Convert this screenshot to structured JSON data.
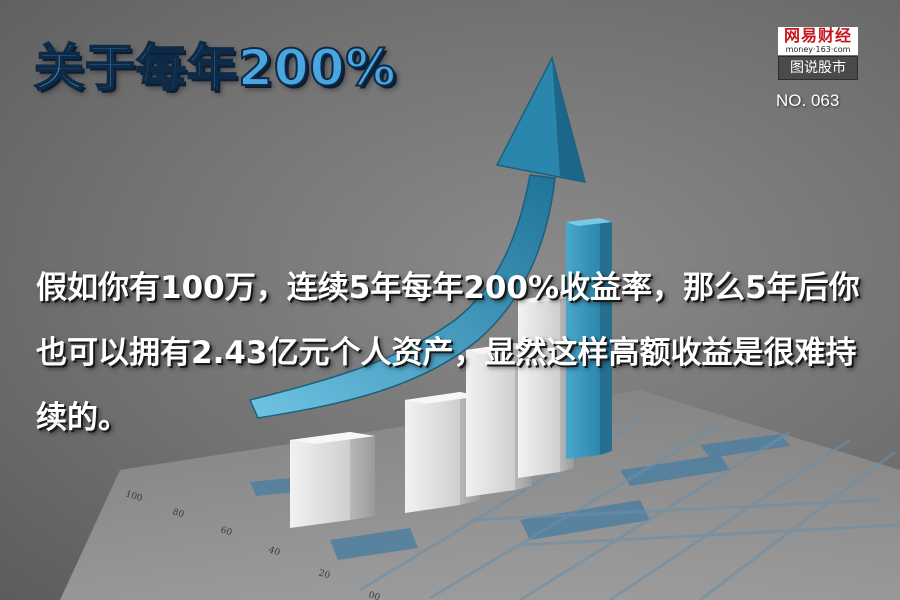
{
  "header": {
    "title": "关于每年200%"
  },
  "branding": {
    "logo_text": "网易财经",
    "site": "money·163·com",
    "section": "图说股市"
  },
  "issue": {
    "number": "NO. 063"
  },
  "content": {
    "paragraph": "假如你有100万，连续5年每年200%收益率，那么5年后你也可以拥有2.43亿元个人资产，显然这样高额收益是很难持续的。"
  },
  "decoration": {
    "axis_ticks": [
      "100",
      "80",
      "60",
      "40",
      "20",
      "00"
    ],
    "colors": {
      "title_blue": "#4aa6e0",
      "arrow_teal": "#2f86a8",
      "bar_white": "#e6e6e6",
      "brand_red": "#c8161e"
    }
  }
}
